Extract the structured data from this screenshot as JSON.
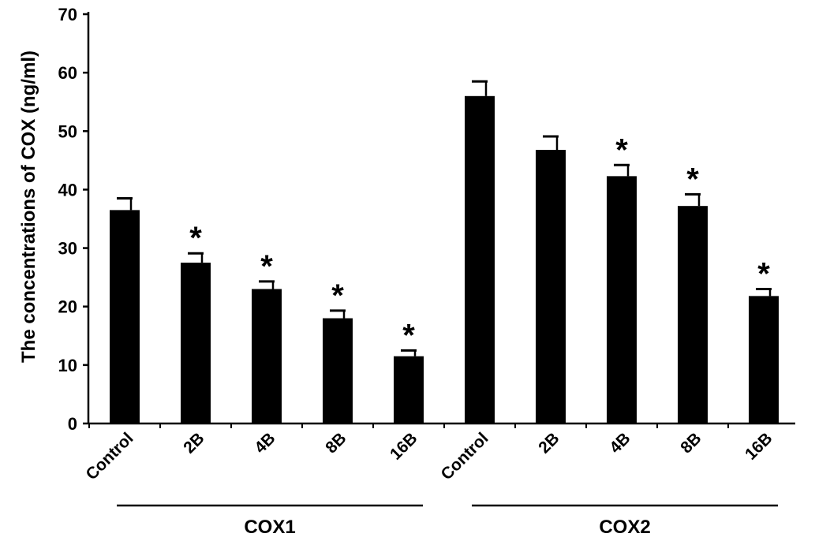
{
  "chart_data": {
    "type": "bar",
    "ylabel": "The concentrations of COX (ng/ml)",
    "xlabel": "",
    "ylim": [
      0,
      70
    ],
    "yticks": [
      0,
      10,
      20,
      30,
      40,
      50,
      60,
      70
    ],
    "legend": "none",
    "grid": false,
    "bar_color": "#000000",
    "categories": [
      "Control",
      "2B",
      "4B",
      "8B",
      "16B",
      "Control",
      "2B",
      "4B",
      "8B",
      "16B"
    ],
    "values": [
      36.5,
      27.5,
      23.0,
      18.0,
      11.5,
      56.0,
      46.8,
      42.3,
      37.2,
      21.8
    ],
    "errors": [
      2.0,
      1.6,
      1.3,
      1.3,
      1.0,
      2.5,
      2.3,
      1.9,
      2.0,
      1.2
    ],
    "significance": [
      "",
      "*",
      "*",
      "*",
      "*",
      "",
      "",
      "*",
      "*",
      "*"
    ],
    "groups": [
      {
        "label": "COX1",
        "categories": [
          "Control",
          "2B",
          "4B",
          "8B",
          "16B"
        ]
      },
      {
        "label": "COX2",
        "categories": [
          "Control",
          "2B",
          "4B",
          "8B",
          "16B"
        ]
      }
    ]
  }
}
